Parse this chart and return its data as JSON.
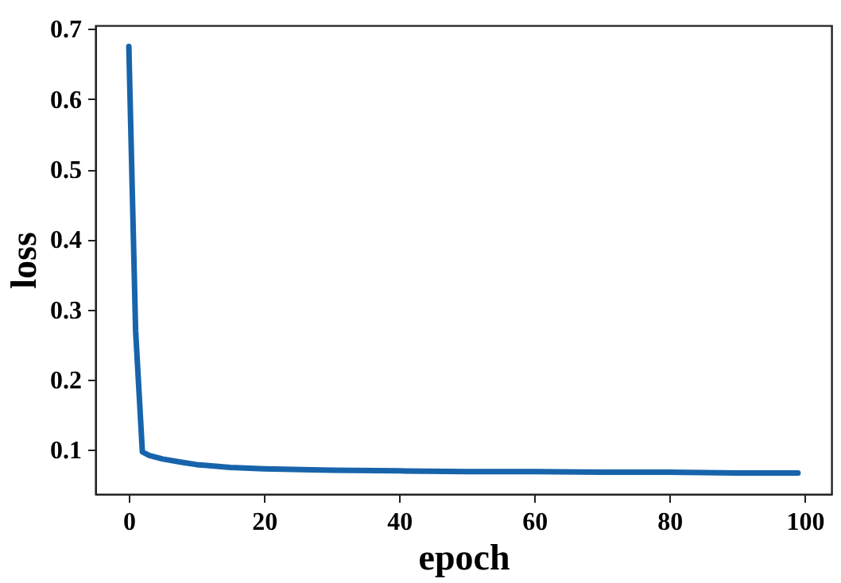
{
  "chart_data": {
    "type": "line",
    "xlabel": "epoch",
    "ylabel": "loss",
    "x": [
      0,
      1,
      2,
      3,
      5,
      8,
      10,
      15,
      20,
      30,
      40,
      50,
      60,
      70,
      80,
      90,
      99
    ],
    "series": [
      {
        "color": "#1764ab",
        "values": [
          0.675,
          0.27,
          0.097,
          0.092,
          0.087,
          0.082,
          0.079,
          0.075,
          0.073,
          0.071,
          0.07,
          0.069,
          0.069,
          0.068,
          0.068,
          0.067,
          0.067
        ]
      }
    ],
    "xlim": [
      -4.95,
      103.95
    ],
    "ylim": [
      0.037,
      0.705
    ],
    "xticks": [
      0,
      20,
      40,
      60,
      80,
      100
    ],
    "yticks": [
      0.1,
      0.2,
      0.3,
      0.4,
      0.5,
      0.6,
      0.7
    ],
    "grid": false,
    "marker": "none",
    "line_style": "solid"
  }
}
